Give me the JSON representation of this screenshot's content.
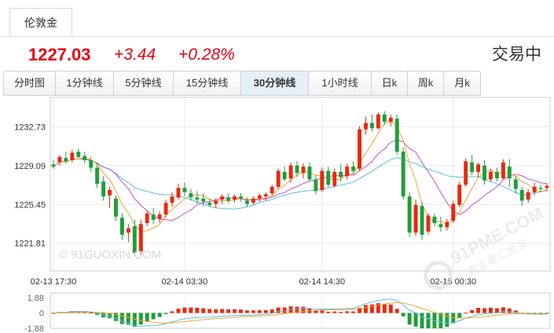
{
  "instrument_tab": "伦敦金",
  "quote": {
    "price": "1227.03",
    "change": "+3.44",
    "change_pct": "+0.28%",
    "status": "交易中"
  },
  "periods": [
    "分时图",
    "1分钟线",
    "5分钟线",
    "15分钟线",
    "30分钟线",
    "1小时线",
    "日k",
    "周k",
    "月k"
  ],
  "active_period": "30分钟线",
  "watermark": {
    "site": "© 91GUOXIN.COM",
    "brand": "91PME.COM",
    "brand_sub": "贵金属汇金宝"
  },
  "colors": {
    "up": "#e8290f",
    "down": "#1f9e3a",
    "ma5": "#f0a43a",
    "ma10": "#c255c8",
    "ma20": "#5bc0de",
    "quote": "#e60012"
  },
  "chart_data": [
    {
      "type": "candlestick",
      "y_ticks": [
        1232.73,
        1229.09,
        1225.45,
        1221.81
      ],
      "y_tick_labels": [
        "1232.73",
        "1229.09",
        "1225.45",
        "1221.81"
      ],
      "ylim": [
        1219.2,
        1235.5
      ],
      "x_tick_labels": [
        "02-13 17:30",
        "02-14 03:30",
        "02-14 14:30",
        "02-15 00:30"
      ],
      "x_tick_index": [
        0,
        21,
        43,
        64
      ],
      "grid": true,
      "series_lines": [
        "ma5",
        "ma10",
        "ma20"
      ],
      "candles": [
        [
          1229.2,
          1229.6,
          1228.8,
          1229.0
        ],
        [
          1229.4,
          1230.1,
          1229.1,
          1229.9
        ],
        [
          1229.8,
          1230.4,
          1229.3,
          1229.5
        ],
        [
          1229.6,
          1230.6,
          1229.4,
          1230.3
        ],
        [
          1230.4,
          1230.7,
          1229.8,
          1229.9
        ],
        [
          1230.0,
          1230.4,
          1229.3,
          1229.6
        ],
        [
          1229.6,
          1229.9,
          1228.5,
          1228.9
        ],
        [
          1228.9,
          1229.4,
          1227.0,
          1227.4
        ],
        [
          1227.6,
          1228.1,
          1225.8,
          1226.2
        ],
        [
          1226.3,
          1227.1,
          1225.1,
          1226.8
        ],
        [
          1226.0,
          1226.3,
          1223.9,
          1224.3
        ],
        [
          1224.2,
          1224.6,
          1222.1,
          1222.6
        ],
        [
          1222.8,
          1223.6,
          1221.9,
          1223.2
        ],
        [
          1223.4,
          1224.0,
          1220.6,
          1220.9
        ],
        [
          1221.0,
          1224.0,
          1220.7,
          1223.6
        ],
        [
          1223.7,
          1224.9,
          1223.4,
          1224.6
        ],
        [
          1224.5,
          1225.1,
          1223.6,
          1224.0
        ],
        [
          1224.1,
          1224.8,
          1223.7,
          1224.5
        ],
        [
          1224.5,
          1225.9,
          1224.2,
          1225.6
        ],
        [
          1225.6,
          1226.6,
          1225.2,
          1226.2
        ],
        [
          1226.1,
          1227.4,
          1225.9,
          1227.0
        ],
        [
          1227.0,
          1227.5,
          1226.2,
          1226.6
        ],
        [
          1226.5,
          1226.9,
          1225.8,
          1226.1
        ],
        [
          1226.1,
          1226.7,
          1225.5,
          1225.9
        ],
        [
          1226.0,
          1226.5,
          1225.3,
          1225.7
        ],
        [
          1225.6,
          1226.0,
          1225.2,
          1225.4
        ],
        [
          1225.5,
          1226.0,
          1225.1,
          1225.8
        ],
        [
          1225.9,
          1226.4,
          1225.5,
          1226.2
        ],
        [
          1226.1,
          1226.5,
          1225.6,
          1225.8
        ],
        [
          1225.9,
          1226.4,
          1225.6,
          1226.2
        ],
        [
          1226.2,
          1226.5,
          1225.7,
          1226.0
        ],
        [
          1225.8,
          1226.1,
          1225.2,
          1225.5
        ],
        [
          1225.6,
          1226.2,
          1225.4,
          1226.0
        ],
        [
          1226.0,
          1226.5,
          1225.7,
          1226.3
        ],
        [
          1226.2,
          1226.6,
          1225.8,
          1226.4
        ],
        [
          1226.5,
          1227.3,
          1226.3,
          1227.1
        ],
        [
          1227.1,
          1228.8,
          1226.9,
          1228.6
        ],
        [
          1228.5,
          1229.0,
          1227.6,
          1227.8
        ],
        [
          1227.9,
          1229.4,
          1227.5,
          1229.1
        ],
        [
          1229.1,
          1229.5,
          1228.0,
          1228.4
        ],
        [
          1228.4,
          1229.3,
          1227.9,
          1229.0
        ],
        [
          1229.0,
          1229.4,
          1227.6,
          1227.8
        ],
        [
          1227.8,
          1228.2,
          1226.4,
          1226.7
        ],
        [
          1226.8,
          1228.9,
          1226.6,
          1228.6
        ],
        [
          1228.6,
          1229.0,
          1227.1,
          1227.3
        ],
        [
          1227.2,
          1228.8,
          1227.0,
          1228.5
        ],
        [
          1228.5,
          1229.2,
          1227.6,
          1228.0
        ],
        [
          1228.1,
          1229.3,
          1227.8,
          1229.0
        ],
        [
          1229.0,
          1229.5,
          1228.3,
          1228.6
        ],
        [
          1228.8,
          1232.8,
          1228.6,
          1232.5
        ],
        [
          1232.5,
          1233.7,
          1232.0,
          1233.1
        ],
        [
          1233.1,
          1233.9,
          1232.3,
          1232.6
        ],
        [
          1232.6,
          1234.1,
          1232.5,
          1233.9
        ],
        [
          1233.9,
          1234.2,
          1232.9,
          1233.2
        ],
        [
          1233.2,
          1233.9,
          1232.8,
          1233.6
        ],
        [
          1233.5,
          1233.9,
          1230.1,
          1230.4
        ],
        [
          1230.4,
          1230.8,
          1225.9,
          1226.2
        ],
        [
          1226.2,
          1226.6,
          1222.4,
          1222.8
        ],
        [
          1222.8,
          1225.9,
          1222.5,
          1225.4
        ],
        [
          1225.3,
          1225.7,
          1222.1,
          1222.6
        ],
        [
          1222.9,
          1224.6,
          1222.6,
          1224.4
        ],
        [
          1224.3,
          1224.6,
          1223.4,
          1223.7
        ],
        [
          1223.6,
          1224.3,
          1222.9,
          1223.3
        ],
        [
          1223.3,
          1224.1,
          1223.0,
          1223.8
        ],
        [
          1223.9,
          1225.8,
          1223.7,
          1225.5
        ],
        [
          1225.4,
          1227.6,
          1225.2,
          1227.3
        ],
        [
          1227.3,
          1229.8,
          1227.1,
          1229.5
        ],
        [
          1229.4,
          1230.1,
          1228.2,
          1228.5
        ],
        [
          1228.5,
          1229.4,
          1228.0,
          1229.2
        ],
        [
          1229.1,
          1229.6,
          1227.3,
          1227.7
        ],
        [
          1227.8,
          1228.8,
          1227.6,
          1228.5
        ],
        [
          1228.5,
          1228.9,
          1227.6,
          1227.9
        ],
        [
          1227.9,
          1229.7,
          1227.8,
          1229.4
        ],
        [
          1229.0,
          1229.7,
          1227.1,
          1227.9
        ],
        [
          1227.8,
          1228.1,
          1226.5,
          1226.9
        ],
        [
          1226.8,
          1227.1,
          1225.3,
          1225.8
        ],
        [
          1225.9,
          1226.9,
          1225.6,
          1226.6
        ],
        [
          1226.6,
          1227.5,
          1226.3,
          1227.1
        ],
        [
          1227.0,
          1227.3,
          1226.6,
          1226.9
        ],
        [
          1227.0,
          1227.4,
          1226.7,
          1227.2
        ]
      ]
    },
    {
      "type": "bar",
      "y_tick_labels": [
        "1.88",
        "0",
        "-1.88"
      ],
      "ylim": [
        -1.88,
        1.88
      ],
      "lines": [
        "dif",
        "dea"
      ]
    }
  ]
}
